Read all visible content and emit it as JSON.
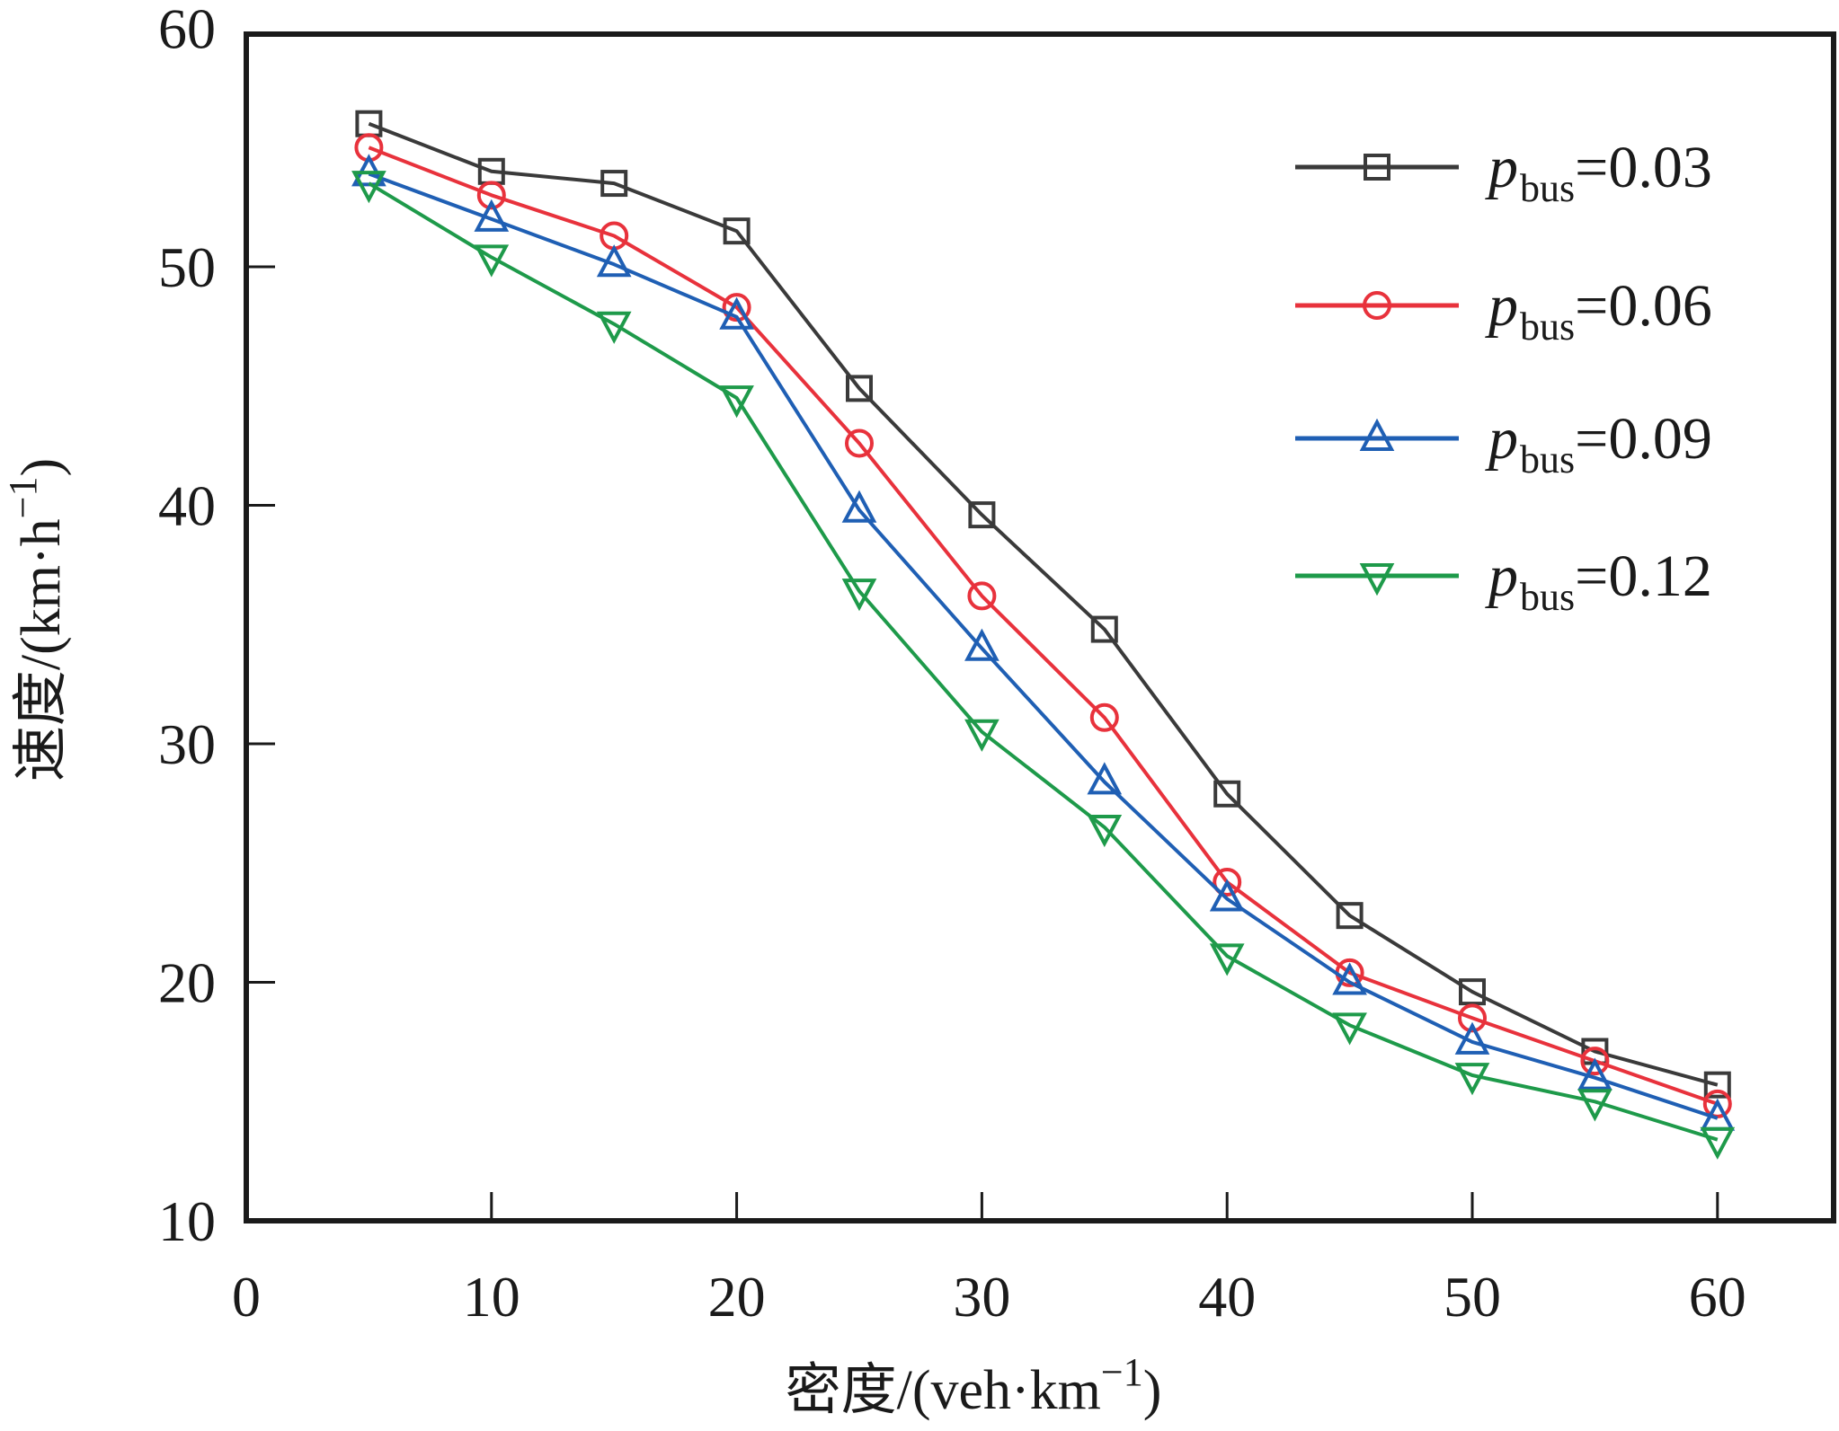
{
  "chart_data": {
    "type": "line",
    "title": "",
    "xlabel": "密度/(veh·km⁻¹)",
    "xlabel_parts": {
      "main": "密度/(veh·km",
      "sup": "−1",
      "close": ")"
    },
    "ylabel": "速度/(km·h⁻¹)",
    "ylabel_parts": {
      "main": "速度/(km·h",
      "sup": "−1",
      "close": ")"
    },
    "xlim": [
      0,
      65
    ],
    "ylim": [
      10,
      60
    ],
    "xticks": [
      0,
      10,
      20,
      30,
      40,
      50,
      60
    ],
    "yticks": [
      10,
      20,
      30,
      40,
      50,
      60
    ],
    "grid": false,
    "legend_position": "top-right",
    "x": [
      5,
      10,
      15,
      20,
      25,
      30,
      35,
      40,
      45,
      50,
      55,
      60
    ],
    "series": [
      {
        "name": "p_bus=0.03",
        "legend": {
          "p": "p",
          "sub": "bus",
          "value": "=0.03"
        },
        "color": "#3a3a3a",
        "marker": "square",
        "values": [
          56.0,
          54.0,
          53.5,
          51.5,
          44.9,
          39.6,
          34.8,
          27.9,
          22.8,
          19.6,
          17.1,
          15.7
        ]
      },
      {
        "name": "p_bus=0.06",
        "legend": {
          "p": "p",
          "sub": "bus",
          "value": "=0.06"
        },
        "color": "#e8323c",
        "marker": "circle",
        "values": [
          55.0,
          53.0,
          51.3,
          48.3,
          42.6,
          36.2,
          31.1,
          24.2,
          20.4,
          18.5,
          16.7,
          14.9
        ]
      },
      {
        "name": "p_bus=0.09",
        "legend": {
          "p": "p",
          "sub": "bus",
          "value": "=0.09"
        },
        "color": "#1f5fb4",
        "marker": "triangle-up",
        "values": [
          53.9,
          52.0,
          50.1,
          47.9,
          39.8,
          34.0,
          28.4,
          23.5,
          20.0,
          17.5,
          16.0,
          14.3
        ]
      },
      {
        "name": "p_bus=0.12",
        "legend": {
          "p": "p",
          "sub": "bus",
          "value": "=0.12"
        },
        "color": "#1e9a4a",
        "marker": "triangle-down",
        "values": [
          53.5,
          50.4,
          47.6,
          44.5,
          36.4,
          30.5,
          26.5,
          21.1,
          18.2,
          16.1,
          15.0,
          13.4
        ]
      }
    ]
  }
}
